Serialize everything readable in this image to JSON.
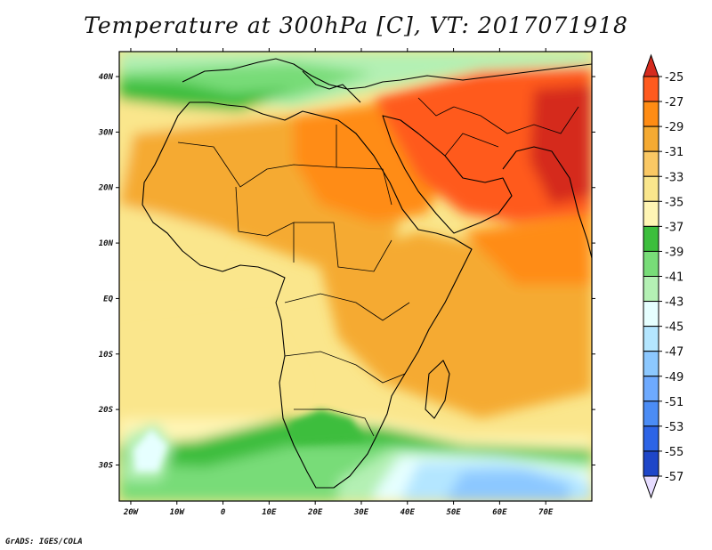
{
  "map": {
    "title": "Temperature at 300hPa [C], VT: 2017071918",
    "footer": "GrADS: IGES/COLA",
    "lat_labels": [
      {
        "text": "40N",
        "lat": 40
      },
      {
        "text": "30N",
        "lat": 30
      },
      {
        "text": "20N",
        "lat": 20
      },
      {
        "text": "10N",
        "lat": 10
      },
      {
        "text": "EQ",
        "lat": 0
      },
      {
        "text": "10S",
        "lat": -10
      },
      {
        "text": "20S",
        "lat": -20
      },
      {
        "text": "30S",
        "lat": -30
      }
    ],
    "lon_labels": [
      {
        "text": "20W",
        "lon": -20
      },
      {
        "text": "10W",
        "lon": -10
      },
      {
        "text": "0",
        "lon": 0
      },
      {
        "text": "10E",
        "lon": 10
      },
      {
        "text": "20E",
        "lon": 20
      },
      {
        "text": "30E",
        "lon": 30
      },
      {
        "text": "40E",
        "lon": 40
      },
      {
        "text": "50E",
        "lon": 50
      },
      {
        "text": "60E",
        "lon": 60
      },
      {
        "text": "70E",
        "lon": 70
      }
    ],
    "lon_range": [
      -22.5,
      80
    ],
    "lat_range": [
      -36.5,
      44.5
    ]
  },
  "colorbar": {
    "levels": [
      "-25",
      "-27",
      "-29",
      "-31",
      "-33",
      "-35",
      "-37",
      "-39",
      "-41",
      "-43",
      "-45",
      "-47",
      "-49",
      "-51",
      "-53",
      "-55",
      "-57"
    ],
    "colors": [
      "#d52b1e",
      "#ff5a1e",
      "#ff8c14",
      "#f5aa32",
      "#fac864",
      "#fae68c",
      "#fff5b4",
      "#3cbe3c",
      "#78dc78",
      "#b4f0b4",
      "#e6ffff",
      "#b4e6ff",
      "#8cc8ff",
      "#6eaaff",
      "#4b8cf5",
      "#2d64e6",
      "#1e46c8",
      "#0a1e78",
      "#e6dcff"
    ]
  }
}
